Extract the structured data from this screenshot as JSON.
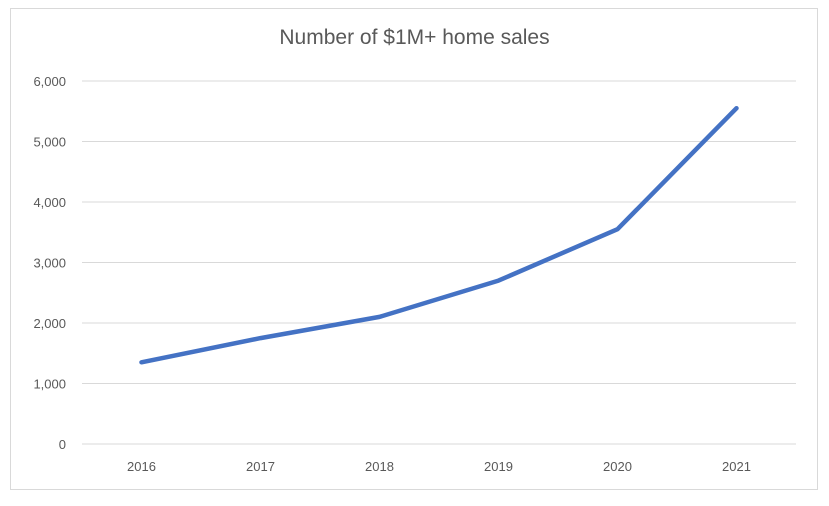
{
  "chart_data": {
    "type": "line",
    "title": "Number of $1M+ home sales",
    "xlabel": "",
    "ylabel": "",
    "categories": [
      "2016",
      "2017",
      "2018",
      "2019",
      "2020",
      "2021"
    ],
    "series": [
      {
        "values": [
          1350,
          1750,
          2100,
          2700,
          3550,
          5550
        ]
      }
    ],
    "ylim": [
      0,
      6000
    ],
    "yticks": [
      0,
      1000,
      2000,
      3000,
      4000,
      5000,
      6000
    ],
    "ytick_labels": [
      "0",
      "1,000",
      "2,000",
      "3,000",
      "4,000",
      "5,000",
      "6,000"
    ],
    "grid": true,
    "legend": "none",
    "colors": {
      "line": "#4472c4",
      "grid": "#d9d9d9",
      "text": "#595959"
    }
  }
}
